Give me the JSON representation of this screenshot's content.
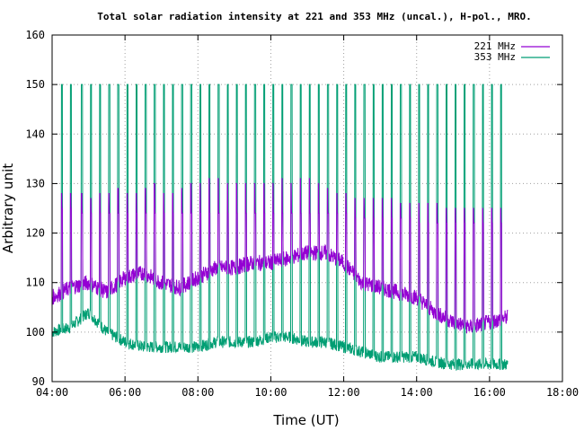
{
  "chart_data": {
    "type": "line",
    "title": "Total solar radiation intensity at 221 and 353 MHz (uncal.), H-pol., MRO.",
    "xlabel": "Time (UT)",
    "ylabel": "Arbitrary unit",
    "xlim": [
      4,
      18
    ],
    "ylim": [
      90,
      160
    ],
    "xticks": [
      {
        "value": 4,
        "label": "04:00"
      },
      {
        "value": 6,
        "label": "06:00"
      },
      {
        "value": 8,
        "label": "08:00"
      },
      {
        "value": 10,
        "label": "10:00"
      },
      {
        "value": 12,
        "label": "12:00"
      },
      {
        "value": 14,
        "label": "14:00"
      },
      {
        "value": 16,
        "label": "16:00"
      },
      {
        "value": 18,
        "label": "18:00"
      }
    ],
    "yticks": [
      {
        "value": 90,
        "label": "90"
      },
      {
        "value": 100,
        "label": "100"
      },
      {
        "value": 110,
        "label": "110"
      },
      {
        "value": 120,
        "label": "120"
      },
      {
        "value": 130,
        "label": "130"
      },
      {
        "value": 140,
        "label": "140"
      },
      {
        "value": 150,
        "label": "150"
      },
      {
        "value": 160,
        "label": "160"
      }
    ],
    "grid": true,
    "legend_position": "top-right",
    "x_units": "hours UT",
    "series": [
      {
        "name": "221 MHz",
        "color": "#9400d3",
        "x": [
          4.0,
          4.5,
          5.0,
          5.5,
          6.0,
          6.5,
          7.0,
          7.5,
          8.0,
          8.5,
          9.0,
          9.5,
          10.0,
          10.5,
          11.0,
          11.5,
          12.0,
          12.5,
          13.0,
          13.5,
          14.0,
          14.5,
          15.0,
          15.5,
          16.0,
          16.5
        ],
        "values": [
          107,
          109,
          110,
          108,
          111,
          112,
          110,
          109,
          111,
          113,
          113,
          114,
          114,
          115,
          116,
          116,
          114,
          110,
          109,
          108,
          107,
          104,
          102,
          101,
          102,
          103
        ]
      },
      {
        "name": "353 MHz",
        "color": "#009e73",
        "x": [
          4.0,
          4.5,
          5.0,
          5.5,
          6.0,
          6.5,
          7.0,
          7.5,
          8.0,
          8.5,
          9.0,
          9.5,
          10.0,
          10.5,
          11.0,
          11.5,
          12.0,
          12.5,
          13.0,
          13.5,
          14.0,
          14.5,
          15.0,
          15.5,
          16.0,
          16.5
        ],
        "values": [
          100,
          101,
          104,
          100,
          98,
          97,
          97,
          97,
          97,
          98,
          98,
          98,
          99,
          99,
          98,
          98,
          97,
          96,
          95,
          95,
          95,
          94,
          93.5,
          93.5,
          93.5,
          93.5
        ]
      }
    ],
    "calibration_spikes": {
      "x": [
        4.25,
        4.5,
        4.8,
        5.05,
        5.3,
        5.55,
        5.8,
        6.05,
        6.3,
        6.55,
        6.8,
        7.05,
        7.3,
        7.55,
        7.8,
        8.05,
        8.3,
        8.55,
        8.8,
        9.05,
        9.3,
        9.55,
        9.8,
        10.05,
        10.3,
        10.55,
        10.8,
        11.05,
        11.3,
        11.55,
        11.8,
        12.05,
        12.3,
        12.55,
        12.8,
        13.05,
        13.3,
        13.55,
        13.8,
        14.05,
        14.3,
        14.55,
        14.8,
        15.05,
        15.3,
        15.55,
        15.8,
        16.05,
        16.3
      ],
      "high_221": [
        128,
        128,
        128,
        127,
        128,
        128,
        129,
        128,
        128,
        129,
        130,
        128,
        128,
        129,
        130,
        130,
        131,
        131,
        130,
        130,
        130,
        130,
        130,
        130,
        131,
        130,
        131,
        131,
        130,
        129,
        128,
        128,
        127,
        127,
        127,
        127,
        127,
        126,
        126,
        126,
        126,
        126,
        125,
        125,
        125,
        125,
        125,
        125,
        125
      ],
      "mid_221": [
        125,
        125,
        124,
        124,
        124,
        124,
        124,
        124,
        124,
        124,
        124,
        124,
        124,
        124,
        124,
        124,
        124,
        124,
        124,
        124,
        124,
        124,
        124,
        124,
        124,
        124,
        124,
        124,
        124,
        124,
        124,
        124,
        123,
        123,
        123,
        123,
        123,
        123,
        123,
        122,
        122,
        122,
        122,
        122,
        122,
        122,
        122,
        122,
        122
      ],
      "high_353": 150
    }
  }
}
